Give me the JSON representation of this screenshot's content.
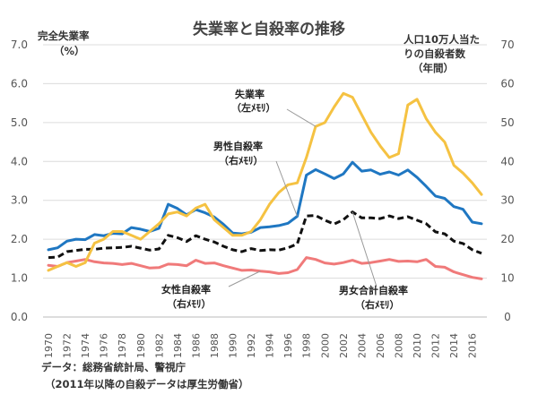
{
  "chart_data": {
    "type": "line",
    "title": "失業率と自殺率の推移",
    "left_axis": {
      "label_line1": "完全失業率",
      "label_line2": "（%）",
      "ylim": [
        0,
        7
      ],
      "ticks": [
        "0.0",
        "1.0",
        "2.0",
        "3.0",
        "4.0",
        "5.0",
        "6.0",
        "7.0"
      ]
    },
    "right_axis": {
      "label_line1": "人口10万人当た",
      "label_line2": "りの自殺者数",
      "label_line3": "（年間）",
      "ylim": [
        0,
        70
      ],
      "ticks": [
        "0",
        "10",
        "20",
        "30",
        "40",
        "50",
        "60",
        "70"
      ]
    },
    "x_ticks": [
      "1970",
      "1972",
      "1974",
      "1976",
      "1978",
      "1980",
      "1982",
      "1984",
      "1986",
      "1988",
      "1990",
      "1992",
      "1994",
      "1996",
      "1998",
      "2000",
      "2002",
      "2004",
      "2006",
      "2008",
      "2010",
      "2012",
      "2014",
      "2016"
    ],
    "x": [
      1970,
      1971,
      1972,
      1973,
      1974,
      1975,
      1976,
      1977,
      1978,
      1979,
      1980,
      1981,
      1982,
      1983,
      1984,
      1985,
      1986,
      1987,
      1988,
      1989,
      1990,
      1991,
      1992,
      1993,
      1994,
      1995,
      1996,
      1997,
      1998,
      1999,
      2000,
      2001,
      2002,
      2003,
      2004,
      2005,
      2006,
      2007,
      2008,
      2009,
      2010,
      2011,
      2012,
      2013,
      2014,
      2015,
      2016,
      2017
    ],
    "series": [
      {
        "key": "unemp",
        "name": "失業率",
        "axis": "left",
        "color": "#F5C242",
        "style": "solid",
        "values": [
          1.2,
          1.3,
          1.4,
          1.3,
          1.4,
          1.9,
          2.0,
          2.2,
          2.2,
          2.1,
          2.0,
          2.2,
          2.4,
          2.65,
          2.7,
          2.6,
          2.8,
          2.9,
          2.5,
          2.3,
          2.1,
          2.1,
          2.2,
          2.5,
          2.9,
          3.2,
          3.4,
          3.45,
          4.1,
          4.9,
          5.0,
          5.4,
          5.75,
          5.65,
          5.2,
          4.75,
          4.4,
          4.1,
          4.2,
          5.45,
          5.6,
          5.1,
          4.75,
          4.5,
          3.9,
          3.7,
          3.45,
          3.15
        ]
      },
      {
        "key": "male",
        "name": "男性自殺率",
        "axis": "right",
        "color": "#1F77C2",
        "style": "solid",
        "values": [
          17.3,
          17.8,
          19.5,
          20.0,
          19.9,
          21.2,
          20.9,
          21.5,
          21.4,
          23.0,
          22.6,
          22.0,
          22.8,
          29.0,
          27.9,
          26.3,
          27.6,
          26.8,
          25.7,
          23.8,
          21.6,
          21.4,
          21.8,
          23.0,
          23.2,
          23.5,
          24.1,
          25.9,
          36.5,
          37.9,
          36.8,
          35.6,
          36.8,
          39.8,
          37.5,
          37.8,
          36.7,
          37.3,
          36.5,
          37.8,
          35.9,
          33.6,
          31.1,
          30.5,
          28.4,
          27.7,
          24.4,
          24.0
        ]
      },
      {
        "key": "total",
        "name": "男女合計自殺率",
        "axis": "right",
        "color": "#111111",
        "style": "dashed",
        "values": [
          15.3,
          15.4,
          16.8,
          17.1,
          17.4,
          17.4,
          17.7,
          17.8,
          17.9,
          18.2,
          17.7,
          17.2,
          17.5,
          21.0,
          20.4,
          19.4,
          20.9,
          20.0,
          19.3,
          18.2,
          17.3,
          16.8,
          17.6,
          17.1,
          17.3,
          17.2,
          17.8,
          18.8,
          26.0,
          26.1,
          24.9,
          23.9,
          25.0,
          27.0,
          25.5,
          25.5,
          25.3,
          26.0,
          25.3,
          25.8,
          24.9,
          24.0,
          21.9,
          21.4,
          19.5,
          18.9,
          17.3,
          16.4
        ]
      },
      {
        "key": "female",
        "name": "女性自殺率",
        "axis": "right",
        "color": "#F07A7A",
        "style": "solid",
        "values": [
          13.3,
          13.0,
          14.0,
          14.4,
          14.8,
          14.2,
          13.9,
          13.8,
          13.5,
          13.8,
          13.2,
          12.6,
          12.7,
          13.6,
          13.5,
          13.2,
          14.6,
          13.8,
          13.9,
          13.2,
          12.6,
          12.0,
          12.1,
          11.8,
          11.6,
          11.2,
          11.4,
          12.2,
          15.3,
          14.8,
          13.9,
          13.6,
          14.0,
          14.6,
          13.8,
          14.0,
          14.4,
          14.8,
          14.3,
          14.4,
          14.2,
          14.8,
          13.0,
          12.8,
          11.6,
          10.9,
          10.2,
          9.8
        ]
      }
    ],
    "annotations": {
      "unemp": {
        "line1": "失業率",
        "line2": "（左ﾒﾓﾘ）"
      },
      "male": {
        "line1": "男性自殺率",
        "line2": "（右ﾒﾓﾘ）"
      },
      "female": {
        "line1": "女性自殺率",
        "line2": "（右ﾒﾓﾘ）"
      },
      "total": {
        "line1": "男女合計自殺率",
        "line2": "（右ﾒﾓﾘ）"
      }
    },
    "source_line1": "データ：総務省統計局、警視庁",
    "source_line2": "（2011年以降の自殺データは厚生労働省）"
  }
}
